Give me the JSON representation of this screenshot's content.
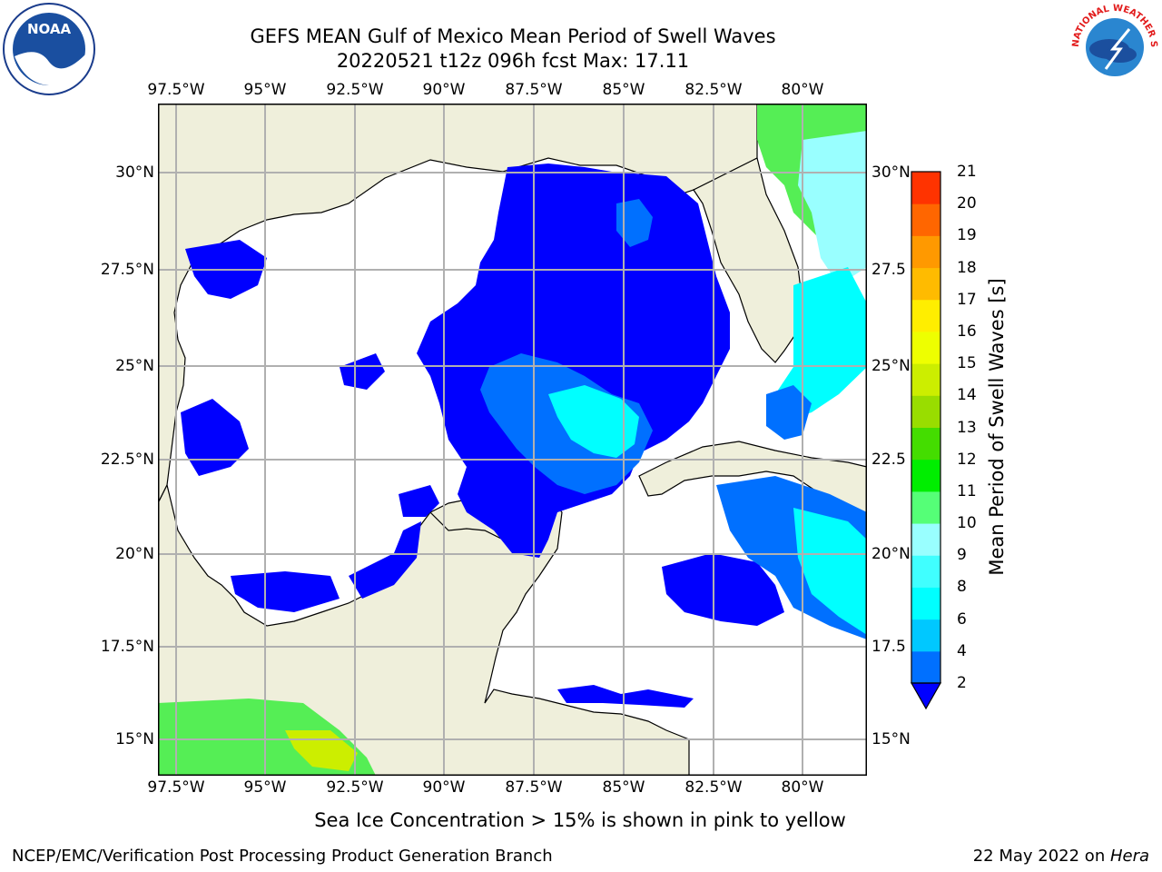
{
  "title_line1": "GEFS MEAN Gulf of Mexico Mean Period of Swell Waves",
  "title_line2": "20220521 t12z 096h fcst   Max: 17.11",
  "lon_ticks": [
    "97.5°W",
    "95°W",
    "92.5°W",
    "90°W",
    "87.5°W",
    "85°W",
    "82.5°W",
    "80°W"
  ],
  "lat_ticks_left": [
    "30°N",
    "27.5°N",
    "25°N",
    "22.5°N",
    "20°N",
    "17.5°N",
    "15°N"
  ],
  "lat_ticks_right": [
    "30°N",
    "27.5",
    "25°N",
    "22.5",
    "20°N",
    "17.5",
    "15°N"
  ],
  "colorbar": {
    "label": "Mean Period of Swell Waves [s]",
    "ticks": [
      "2",
      "4",
      "6",
      "8",
      "9",
      "10",
      "11",
      "12",
      "13",
      "14",
      "15",
      "16",
      "17",
      "18",
      "19",
      "20",
      "21"
    ],
    "colors": [
      "#0070ff",
      "#00c8ff",
      "#00ffff",
      "#40ffff",
      "#99ffff",
      "#55ff77",
      "#00ee00",
      "#44dd00",
      "#99dd00",
      "#ccee00",
      "#eeff00",
      "#ffee00",
      "#ffbb00",
      "#ff9900",
      "#ff6600",
      "#ff3300",
      "#ff0000"
    ],
    "extend_color": "#0000ff"
  },
  "colors": {
    "land": "#efefdb",
    "swell_low": "#0000ff",
    "swell_mid": "#0070ff",
    "swell_cyan": "#00ffff",
    "swell_green": "#55ee55",
    "grid": "#b0b0b0"
  },
  "sea_ice_note": "Sea Ice Concentration > 15% is shown in pink to yellow",
  "footer_left": "NCEP/EMC/Verification Post Processing Product Generation Branch",
  "footer_right_prefix": "22 May 2022 on ",
  "footer_right_host": "Hera",
  "logos": {
    "noaa": "NOAA",
    "nws_ring": "NATIONAL WEATHER SERVICE"
  }
}
